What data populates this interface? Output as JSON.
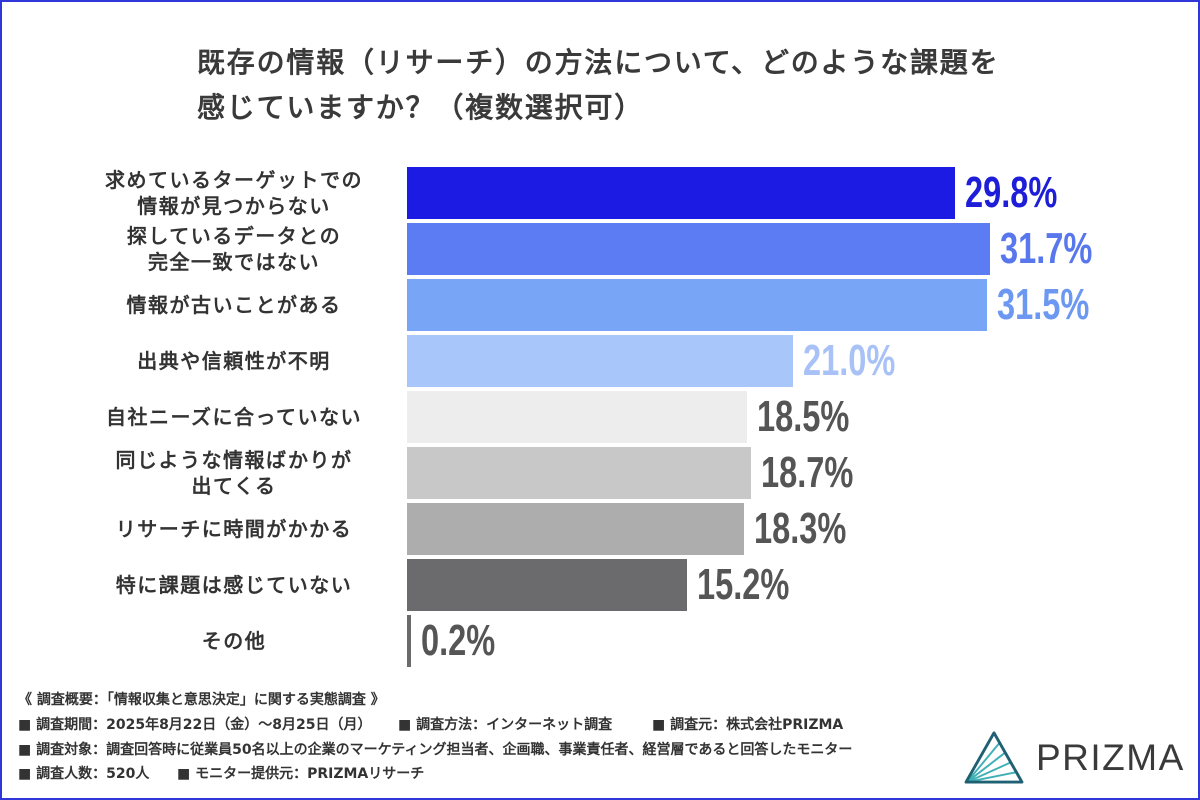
{
  "chart_data": {
    "type": "bar",
    "title_lines": [
      "既存の情報（リサーチ）の方法について、どのような課題を",
      "感じていますか？（複数選択可）"
    ],
    "categories": [
      "求めているターゲットでの\n情報が見つからない",
      "探しているデータとの\n完全一致ではない",
      "情報が古いことがある",
      "出典や信頼性が不明",
      "自社ニーズに合っていない",
      "同じような情報ばかりが\n出てくる",
      "リサーチに時間がかかる",
      "特に課題は感じていない",
      "その他"
    ],
    "values": [
      29.8,
      31.7,
      31.5,
      21.0,
      18.5,
      18.7,
      18.3,
      15.2,
      0.2
    ],
    "value_labels": [
      "29.8%",
      "31.7%",
      "31.5%",
      "21.0%",
      "18.5%",
      "18.7%",
      "18.3%",
      "15.2%",
      "0.2%"
    ],
    "bar_colors": [
      "#1b1be3",
      "#5b7cf3",
      "#79a5f6",
      "#a9c6fb",
      "#ededed",
      "#c8c8c8",
      "#adadad",
      "#6b6a6d",
      "#6b6a6d"
    ],
    "label_colors": [
      "#1e1ed8",
      "#5977ec",
      "#6d98f1",
      "#a8c2f7",
      "#555555",
      "#555555",
      "#555555",
      "#555555",
      "#555555"
    ]
  },
  "survey_summary": {
    "heading": "《 調査概要：「情報収集と意思決定」に関する実態調査 》",
    "period": "■ 調査期間：2025年8月22日（金）〜8月25日（月）",
    "method": "■ 調査方法：インターネット調査",
    "source": "■ 調査元：株式会社PRIZMA",
    "target": "■ 調査対象：調査回答時に従業員50名以上の企業のマーケティング担当者、企画職、事業責任者、経営層であると回答したモニター",
    "respondents": "■ 調査人数：520人",
    "monitor_provider": "■ モニター提供元：PRIZMAリサーチ"
  },
  "logo": {
    "text": "PRIZMA",
    "icon": "prizma-triangle-icon",
    "colors": {
      "outline": "#1f6172",
      "stripes": "#3fb0b5"
    }
  },
  "colors": {
    "border": "#2f37d9",
    "title": "#3a3a3a",
    "text": "#333333"
  }
}
